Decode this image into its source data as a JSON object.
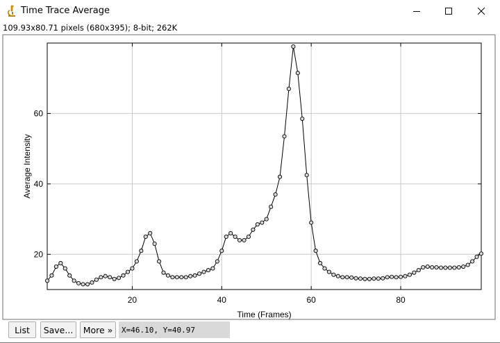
{
  "window": {
    "title": "Time Trace Average",
    "info": "109.93x80.71 pixels (680x395); 8-bit; 262K",
    "minimize_icon": "minimize-icon",
    "maximize_icon": "maximize-icon",
    "close_icon": "close-icon",
    "app_icon": "microscope-icon"
  },
  "buttons": {
    "list": "List",
    "save": "Save...",
    "more": "More »"
  },
  "coords": "X=46.10, Y=40.97",
  "chart_data": {
    "type": "line",
    "xlabel": "Time (Frames)",
    "ylabel": "Average Intensity",
    "xlim": [
      1,
      98
    ],
    "ylim": [
      10,
      80
    ],
    "xticks": [
      20,
      40,
      60,
      80
    ],
    "yticks": [
      20,
      40,
      60
    ],
    "grid": true,
    "markers": "circle",
    "x": [
      1,
      2,
      3,
      4,
      5,
      6,
      7,
      8,
      9,
      10,
      11,
      12,
      13,
      14,
      15,
      16,
      17,
      18,
      19,
      20,
      21,
      22,
      23,
      24,
      25,
      26,
      27,
      28,
      29,
      30,
      31,
      32,
      33,
      34,
      35,
      36,
      37,
      38,
      39,
      40,
      41,
      42,
      43,
      44,
      45,
      46,
      47,
      48,
      49,
      50,
      51,
      52,
      53,
      54,
      55,
      56,
      57,
      58,
      59,
      60,
      61,
      62,
      63,
      64,
      65,
      66,
      67,
      68,
      69,
      70,
      71,
      72,
      73,
      74,
      75,
      76,
      77,
      78,
      79,
      80,
      81,
      82,
      83,
      84,
      85,
      86,
      87,
      88,
      89,
      90,
      91,
      92,
      93,
      94,
      95,
      96,
      97,
      98
    ],
    "y": [
      12.5,
      14,
      16.5,
      17.5,
      16,
      14,
      12.5,
      11.8,
      11.5,
      11.5,
      12,
      12.8,
      13.5,
      13.8,
      13.5,
      13,
      13.3,
      14,
      15,
      16,
      18,
      21,
      25,
      26,
      23,
      18,
      14.8,
      14,
      13.5,
      13.5,
      13.5,
      13.5,
      13.8,
      14,
      14.5,
      15,
      15.5,
      16,
      18,
      21,
      25,
      26,
      25,
      24,
      24,
      25,
      27,
      28.5,
      29,
      30,
      33.5,
      37,
      42,
      53.5,
      67,
      79,
      71.5,
      58.5,
      42.5,
      29,
      21,
      17.5,
      16,
      15,
      14.2,
      13.8,
      13.5,
      13.5,
      13.4,
      13.2,
      13.1,
      13,
      13,
      13.1,
      13.1,
      13.2,
      13.5,
      13.6,
      13.5,
      13.6,
      13.8,
      14.2,
      14.8,
      15.5,
      16.3,
      16.5,
      16.3,
      16.3,
      16.2,
      16.2,
      16.2,
      16.2,
      16.3,
      16.5,
      17,
      18,
      19.3,
      20.2
    ]
  }
}
